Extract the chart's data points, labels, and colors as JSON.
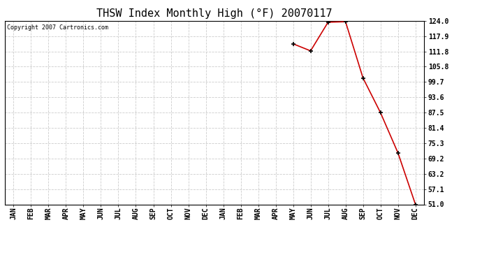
{
  "title": "THSW Index Monthly High (°F) 20070117",
  "copyright": "Copyright 2007 Cartronics.com",
  "x_labels": [
    "JAN",
    "FEB",
    "MAR",
    "APR",
    "MAY",
    "JUN",
    "JUL",
    "AUG",
    "SEP",
    "OCT",
    "NOV",
    "DEC",
    "JAN",
    "FEB",
    "MAR",
    "APR",
    "MAY",
    "JUN",
    "JUL",
    "AUG",
    "SEP",
    "OCT",
    "NOV",
    "DEC"
  ],
  "data_indices": [
    16,
    17,
    18,
    19,
    20,
    21,
    22,
    23
  ],
  "data_values": [
    114.9,
    112.1,
    123.5,
    123.7,
    101.3,
    87.5,
    71.5,
    51.0
  ],
  "y_ticks": [
    51.0,
    57.1,
    63.2,
    69.2,
    75.3,
    81.4,
    87.5,
    93.6,
    99.7,
    105.8,
    111.8,
    117.9,
    124.0
  ],
  "y_min": 51.0,
  "y_max": 124.0,
  "line_color": "#cc0000",
  "bg_color": "#ffffff",
  "grid_color": "#cccccc",
  "title_fontsize": 11,
  "copyright_fontsize": 6,
  "tick_label_fontsize": 7
}
